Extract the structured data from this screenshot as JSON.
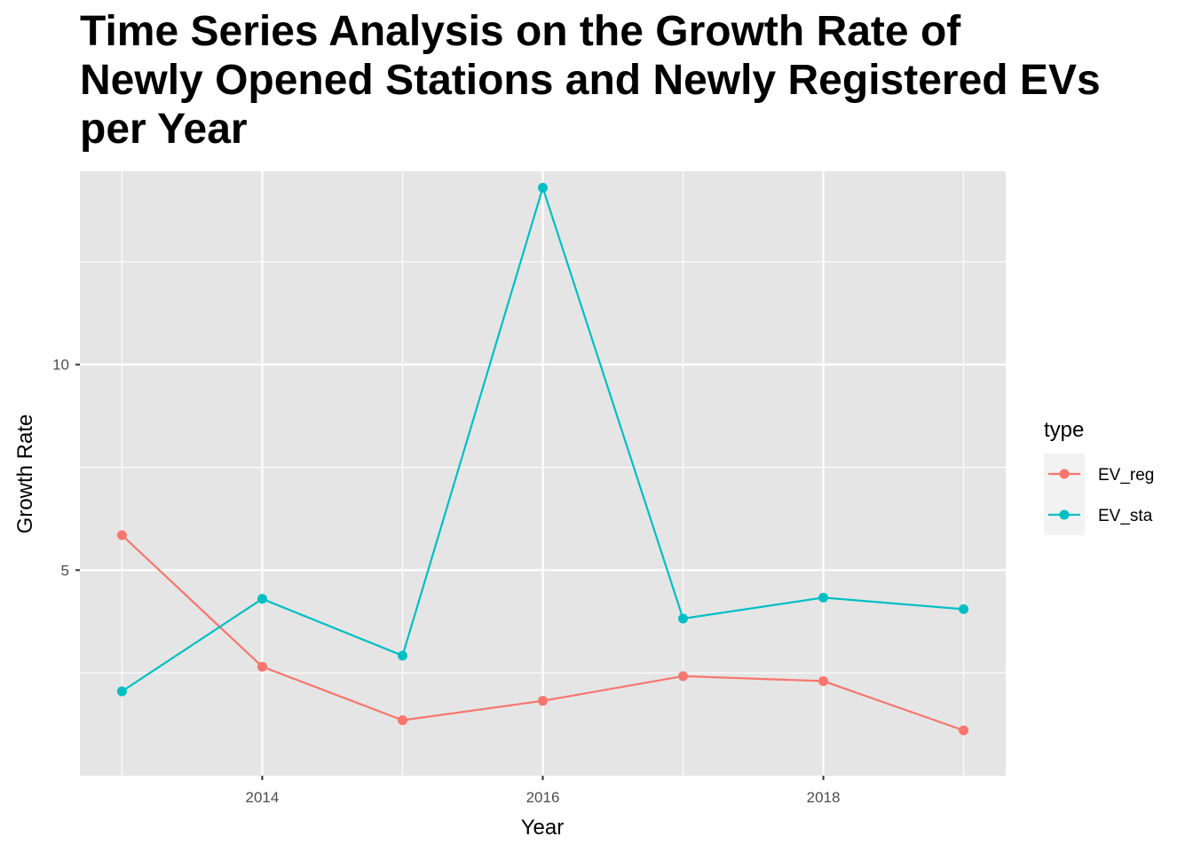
{
  "chart_data": {
    "type": "line",
    "title_lines": [
      "Time Series Analysis on the Growth Rate of",
      "Newly Opened Stations and Newly Registered EVs",
      "per Year"
    ],
    "xlabel": "Year",
    "ylabel": "Growth Rate",
    "x": [
      2013,
      2014,
      2015,
      2016,
      2017,
      2018,
      2019
    ],
    "xlim": [
      2012.7,
      2019.3
    ],
    "ylim": [
      0.0,
      14.7
    ],
    "x_ticks": [
      2014,
      2016,
      2018
    ],
    "y_ticks": [
      5,
      10
    ],
    "x_tick_labels": [
      "2014",
      "2016",
      "2018"
    ],
    "y_tick_labels": [
      "5",
      "10"
    ],
    "grid": true,
    "legend_title": "type",
    "legend_position": "right",
    "series": [
      {
        "name": "EV_reg",
        "color": "#F8766D",
        "values": [
          5.85,
          2.65,
          1.35,
          1.82,
          2.42,
          2.3,
          1.1
        ]
      },
      {
        "name": "EV_sta",
        "color": "#00BFC4",
        "values": [
          2.05,
          4.3,
          2.92,
          14.3,
          3.82,
          4.33,
          4.05
        ]
      }
    ]
  }
}
